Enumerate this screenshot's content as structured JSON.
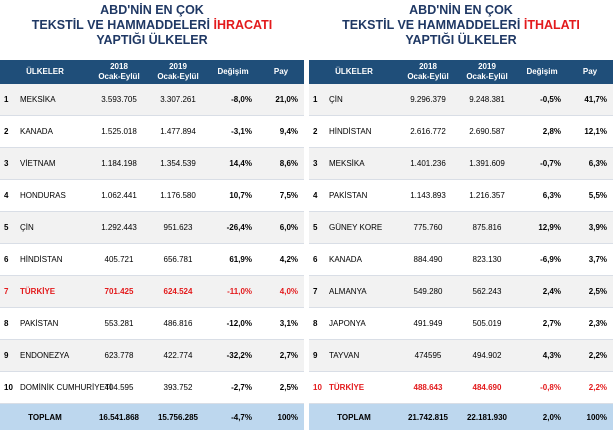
{
  "left": {
    "title_line1": "ABD'NİN EN ÇOK",
    "title_line2_prefix": "TEKSTİL VE HAMMADDELERİ ",
    "title_line2_highlight": "İHRACATI",
    "title_line3": "YAPTIĞI ÜLKELER",
    "headers": {
      "country": "ÜLKELER",
      "y2018": "2018",
      "y2018_sub": "Ocak-Eylül",
      "y2019": "2019",
      "y2019_sub": "Ocak-Eylül",
      "change": "Değişim",
      "share": "Pay"
    },
    "rows": [
      {
        "rank": "1",
        "country": "MEKSİKA",
        "v2018": "3.593.705",
        "v2019": "3.307.261",
        "change": "-8,0%",
        "share": "21,0%",
        "turkey": false
      },
      {
        "rank": "2",
        "country": "KANADA",
        "v2018": "1.525.018",
        "v2019": "1.477.894",
        "change": "-3,1%",
        "share": "9,4%",
        "turkey": false
      },
      {
        "rank": "3",
        "country": "VİETNAM",
        "v2018": "1.184.198",
        "v2019": "1.354.539",
        "change": "14,4%",
        "share": "8,6%",
        "turkey": false
      },
      {
        "rank": "4",
        "country": "HONDURAS",
        "v2018": "1.062.441",
        "v2019": "1.176.580",
        "change": "10,7%",
        "share": "7,5%",
        "turkey": false
      },
      {
        "rank": "5",
        "country": "ÇİN",
        "v2018": "1.292.443",
        "v2019": "951.623",
        "change": "-26,4%",
        "share": "6,0%",
        "turkey": false
      },
      {
        "rank": "6",
        "country": "HİNDİSTAN",
        "v2018": "405.721",
        "v2019": "656.781",
        "change": "61,9%",
        "share": "4,2%",
        "turkey": false
      },
      {
        "rank": "7",
        "country": "TÜRKİYE",
        "v2018": "701.425",
        "v2019": "624.524",
        "change": "-11,0%",
        "share": "4,0%",
        "turkey": true
      },
      {
        "rank": "8",
        "country": "PAKİSTAN",
        "v2018": "553.281",
        "v2019": "486.816",
        "change": "-12,0%",
        "share": "3,1%",
        "turkey": false
      },
      {
        "rank": "9",
        "country": "ENDONEZYA",
        "v2018": "623.778",
        "v2019": "422.774",
        "change": "-32,2%",
        "share": "2,7%",
        "turkey": false
      },
      {
        "rank": "10",
        "country": "DOMİNİK CUMHURİYETİ",
        "v2018": "404.595",
        "v2019": "393.752",
        "change": "-2,7%",
        "share": "2,5%",
        "turkey": false
      }
    ],
    "total": {
      "label": "TOPLAM",
      "v2018": "16.541.868",
      "v2019": "15.756.285",
      "change": "-4,7%",
      "share": "100%"
    }
  },
  "right": {
    "title_line1": "ABD'NİN EN ÇOK",
    "title_line2_prefix": "TEKSTİL VE HAMMADDELERİ ",
    "title_line2_highlight": "İTHALATI",
    "title_line3": "YAPTIĞI ÜLKELER",
    "headers": {
      "country": "ÜLKELER",
      "y2018": "2018",
      "y2018_sub": "Ocak-Eylül",
      "y2019": "2019",
      "y2019_sub": "Ocak-Eylül",
      "change": "Değişim",
      "share": "Pay"
    },
    "rows": [
      {
        "rank": "1",
        "country": "ÇİN",
        "v2018": "9.296.379",
        "v2019": "9.248.381",
        "change": "-0,5%",
        "share": "41,7%",
        "turkey": false
      },
      {
        "rank": "2",
        "country": "HİNDİSTAN",
        "v2018": "2.616.772",
        "v2019": "2.690.587",
        "change": "2,8%",
        "share": "12,1%",
        "turkey": false
      },
      {
        "rank": "3",
        "country": "MEKSİKA",
        "v2018": "1.401.236",
        "v2019": "1.391.609",
        "change": "-0,7%",
        "share": "6,3%",
        "turkey": false
      },
      {
        "rank": "4",
        "country": "PAKİSTAN",
        "v2018": "1.143.893",
        "v2019": "1.216.357",
        "change": "6,3%",
        "share": "5,5%",
        "turkey": false
      },
      {
        "rank": "5",
        "country": "GÜNEY KORE",
        "v2018": "775.760",
        "v2019": "875.816",
        "change": "12,9%",
        "share": "3,9%",
        "turkey": false
      },
      {
        "rank": "6",
        "country": "KANADA",
        "v2018": "884.490",
        "v2019": "823.130",
        "change": "-6,9%",
        "share": "3,7%",
        "turkey": false
      },
      {
        "rank": "7",
        "country": "ALMANYA",
        "v2018": "549.280",
        "v2019": "562.243",
        "change": "2,4%",
        "share": "2,5%",
        "turkey": false
      },
      {
        "rank": "8",
        "country": "JAPONYA",
        "v2018": "491.949",
        "v2019": "505.019",
        "change": "2,7%",
        "share": "2,3%",
        "turkey": false
      },
      {
        "rank": "9",
        "country": "TAYVAN",
        "v2018": "474595",
        "v2019": "494.902",
        "change": "4,3%",
        "share": "2,2%",
        "turkey": false
      },
      {
        "rank": "10",
        "country": "TÜRKİYE",
        "v2018": "488.643",
        "v2019": "484.690",
        "change": "-0,8%",
        "share": "2,2%",
        "turkey": true
      }
    ],
    "total": {
      "label": "TOPLAM",
      "v2018": "21.742.815",
      "v2019": "22.181.930",
      "change": "2,0%",
      "share": "100%"
    }
  }
}
